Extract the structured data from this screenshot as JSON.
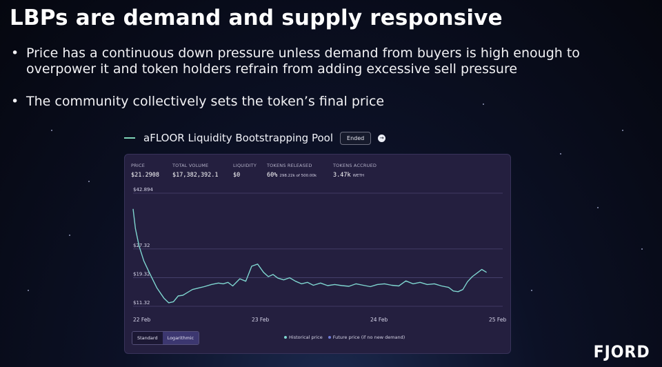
{
  "slide": {
    "title": "LBPs are demand and supply responsive",
    "bullets": [
      "Price has a continuous down pressure unless demand from buyers is high enough to overpower it and token holders refrain from adding excessive sell pressure",
      "The community collectively sets the token’s final price"
    ]
  },
  "pool": {
    "title": "aFLOOR Liquidity Bootstrapping Pool",
    "status_badge": "Ended",
    "info_icon": "info-icon"
  },
  "stats": {
    "price": {
      "label": "PRICE",
      "value": "$21.2908"
    },
    "total_volume": {
      "label": "TOTAL VOLUME",
      "value": "$17,382,392.1"
    },
    "liquidity": {
      "label": "LIQUIDITY",
      "value": "$0"
    },
    "tokens_released": {
      "label": "TOKENS RELEASED",
      "value": "60%",
      "sub": "298.22k of 500.00k"
    },
    "tokens_accrued": {
      "label": "TOKENS ACCRUED",
      "value": "3.47k",
      "sub": "WETH"
    }
  },
  "toggle": {
    "standard": "Standard",
    "logarithmic": "Logarithmic",
    "selected": "Standard"
  },
  "legend": {
    "historical": "Historical price",
    "future": "Future price (if no new demand)"
  },
  "colors": {
    "historical_line": "#7fd6d0",
    "future_line": "#6f7bd6",
    "panel_bg": "#241f3f",
    "accent_green": "#7fd6b8"
  },
  "brand": {
    "logo_text": "FJORD"
  },
  "chart_data": {
    "type": "line",
    "y_ticks": [
      "$42.894",
      "$27.32",
      "$19.32",
      "$11.32"
    ],
    "y_tick_values": [
      42.894,
      27.32,
      19.32,
      11.32
    ],
    "ylim": [
      11.32,
      42.894
    ],
    "x_ticks": [
      "22 Feb",
      "23 Feb",
      "24 Feb",
      "25 Feb"
    ],
    "x_tick_values": [
      0,
      1,
      2,
      3
    ],
    "xlim": [
      0,
      3
    ],
    "grid": true,
    "legend_position": "bottom",
    "series": [
      {
        "name": "Historical price",
        "x": [
          0,
          0.02,
          0.05,
          0.09,
          0.14,
          0.2,
          0.26,
          0.3,
          0.34,
          0.38,
          0.42,
          0.46,
          0.5,
          0.55,
          0.6,
          0.66,
          0.72,
          0.76,
          0.8,
          0.84,
          0.9,
          0.95,
          1.0,
          1.05,
          1.1,
          1.14,
          1.18,
          1.22,
          1.27,
          1.32,
          1.37,
          1.42,
          1.47,
          1.52,
          1.58,
          1.64,
          1.7,
          1.76,
          1.82,
          1.88,
          1.94,
          2.0,
          2.06,
          2.12,
          2.18,
          2.24,
          2.3,
          2.36,
          2.42,
          2.48,
          2.54,
          2.6,
          2.66,
          2.7,
          2.74,
          2.78,
          2.82,
          2.86,
          2.9,
          2.94,
          2.98
        ],
        "y": [
          38.5,
          33.0,
          28.2,
          24.0,
          20.5,
          16.5,
          13.6,
          12.3,
          12.6,
          14.2,
          14.4,
          15.2,
          16.0,
          16.4,
          16.8,
          17.4,
          17.8,
          17.6,
          18.0,
          17.0,
          19.0,
          18.3,
          22.5,
          23.1,
          20.8,
          19.6,
          20.2,
          19.2,
          18.7,
          19.3,
          18.3,
          17.6,
          18.0,
          17.2,
          17.8,
          17.1,
          17.4,
          17.1,
          16.9,
          17.6,
          17.2,
          16.8,
          17.4,
          17.6,
          17.2,
          17.0,
          18.4,
          17.6,
          18.0,
          17.4,
          17.6,
          17.0,
          16.6,
          15.6,
          15.4,
          16.0,
          18.2,
          19.6,
          20.6,
          21.6,
          20.8
        ]
      },
      {
        "name": "Future price (if no new demand)",
        "x": [],
        "y": []
      }
    ]
  }
}
